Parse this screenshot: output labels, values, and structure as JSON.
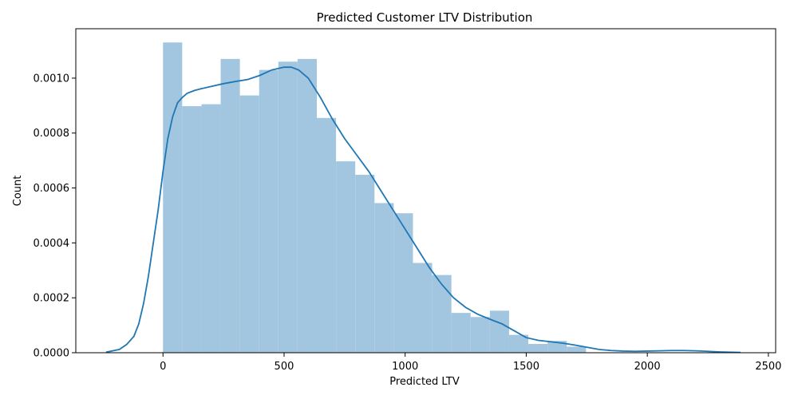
{
  "chart_data": {
    "type": "bar",
    "title": "Predicted Customer LTV Distribution",
    "xlabel": "Predicted LTV",
    "ylabel": "Count",
    "xlim": [
      -360,
      2530
    ],
    "ylim": [
      0,
      0.00118
    ],
    "xticks": [
      0,
      500,
      1000,
      1500,
      2000,
      2500
    ],
    "xtick_labels": [
      "0",
      "500",
      "1000",
      "1500",
      "2000",
      "2500"
    ],
    "yticks": [
      0,
      0.0002,
      0.0004,
      0.0006,
      0.0008,
      0.001
    ],
    "ytick_labels": [
      "0.0000",
      "0.0002",
      "0.0004",
      "0.0006",
      "0.0008",
      "0.0010"
    ],
    "grid": false,
    "bin_width": 79.4,
    "bins": [
      {
        "x0": 0,
        "value": 0.00113
      },
      {
        "x0": 79.4,
        "value": 0.000898
      },
      {
        "x0": 158.8,
        "value": 0.000905
      },
      {
        "x0": 238.2,
        "value": 0.00107
      },
      {
        "x0": 317.6,
        "value": 0.000937
      },
      {
        "x0": 397.0,
        "value": 0.00103
      },
      {
        "x0": 476.4,
        "value": 0.00106
      },
      {
        "x0": 555.8,
        "value": 0.00107
      },
      {
        "x0": 635.2,
        "value": 0.000855
      },
      {
        "x0": 714.6,
        "value": 0.000697
      },
      {
        "x0": 794.0,
        "value": 0.000648
      },
      {
        "x0": 873.4,
        "value": 0.000545
      },
      {
        "x0": 952.8,
        "value": 0.000508
      },
      {
        "x0": 1032.2,
        "value": 0.000327
      },
      {
        "x0": 1111.6,
        "value": 0.000283
      },
      {
        "x0": 1191.0,
        "value": 0.000145
      },
      {
        "x0": 1270.4,
        "value": 0.00013
      },
      {
        "x0": 1349.8,
        "value": 0.000153
      },
      {
        "x0": 1429.2,
        "value": 6.5e-05
      },
      {
        "x0": 1508.6,
        "value": 3.2e-05
      },
      {
        "x0": 1588.0,
        "value": 4.3e-05
      },
      {
        "x0": 1667.4,
        "value": 2.2e-05
      }
    ],
    "kde": {
      "x": [
        -235,
        -180,
        -150,
        -120,
        -100,
        -80,
        -60,
        -40,
        -20,
        0,
        20,
        40,
        60,
        80,
        100,
        130,
        160,
        200,
        250,
        300,
        350,
        400,
        450,
        500,
        530,
        560,
        600,
        650,
        700,
        750,
        800,
        850,
        900,
        950,
        1000,
        1050,
        1100,
        1150,
        1200,
        1250,
        1300,
        1350,
        1400,
        1450,
        1500,
        1550,
        1600,
        1650,
        1700,
        1750,
        1800,
        1850,
        1900,
        1950,
        2000,
        2050,
        2100,
        2150,
        2200,
        2250,
        2300,
        2385
      ],
      "y": [
        2e-06,
        1.2e-05,
        3e-05,
        6e-05,
        0.000105,
        0.00018,
        0.00028,
        0.0004,
        0.00052,
        0.00066,
        0.00078,
        0.00086,
        0.00091,
        0.00093,
        0.000945,
        0.000955,
        0.000962,
        0.00097,
        0.00098,
        0.000988,
        0.000995,
        0.00101,
        0.00103,
        0.00104,
        0.00104,
        0.00103,
        0.001,
        0.00093,
        0.00085,
        0.00078,
        0.00072,
        0.00066,
        0.00059,
        0.00052,
        0.00045,
        0.00038,
        0.00031,
        0.00025,
        0.0002,
        0.000165,
        0.00014,
        0.000122,
        0.000105,
        8e-05,
        5.5e-05,
        4.5e-05,
        4e-05,
        3.5e-05,
        2.8e-05,
        2e-05,
        1.2e-05,
        8e-06,
        6e-06,
        5e-06,
        6e-06,
        7e-06,
        8e-06,
        8e-06,
        7e-06,
        5e-06,
        3e-06,
        1e-06
      ]
    },
    "colors": {
      "bar": "#a3c6e0",
      "line": "#1f77b4",
      "axis": "#000000"
    }
  }
}
